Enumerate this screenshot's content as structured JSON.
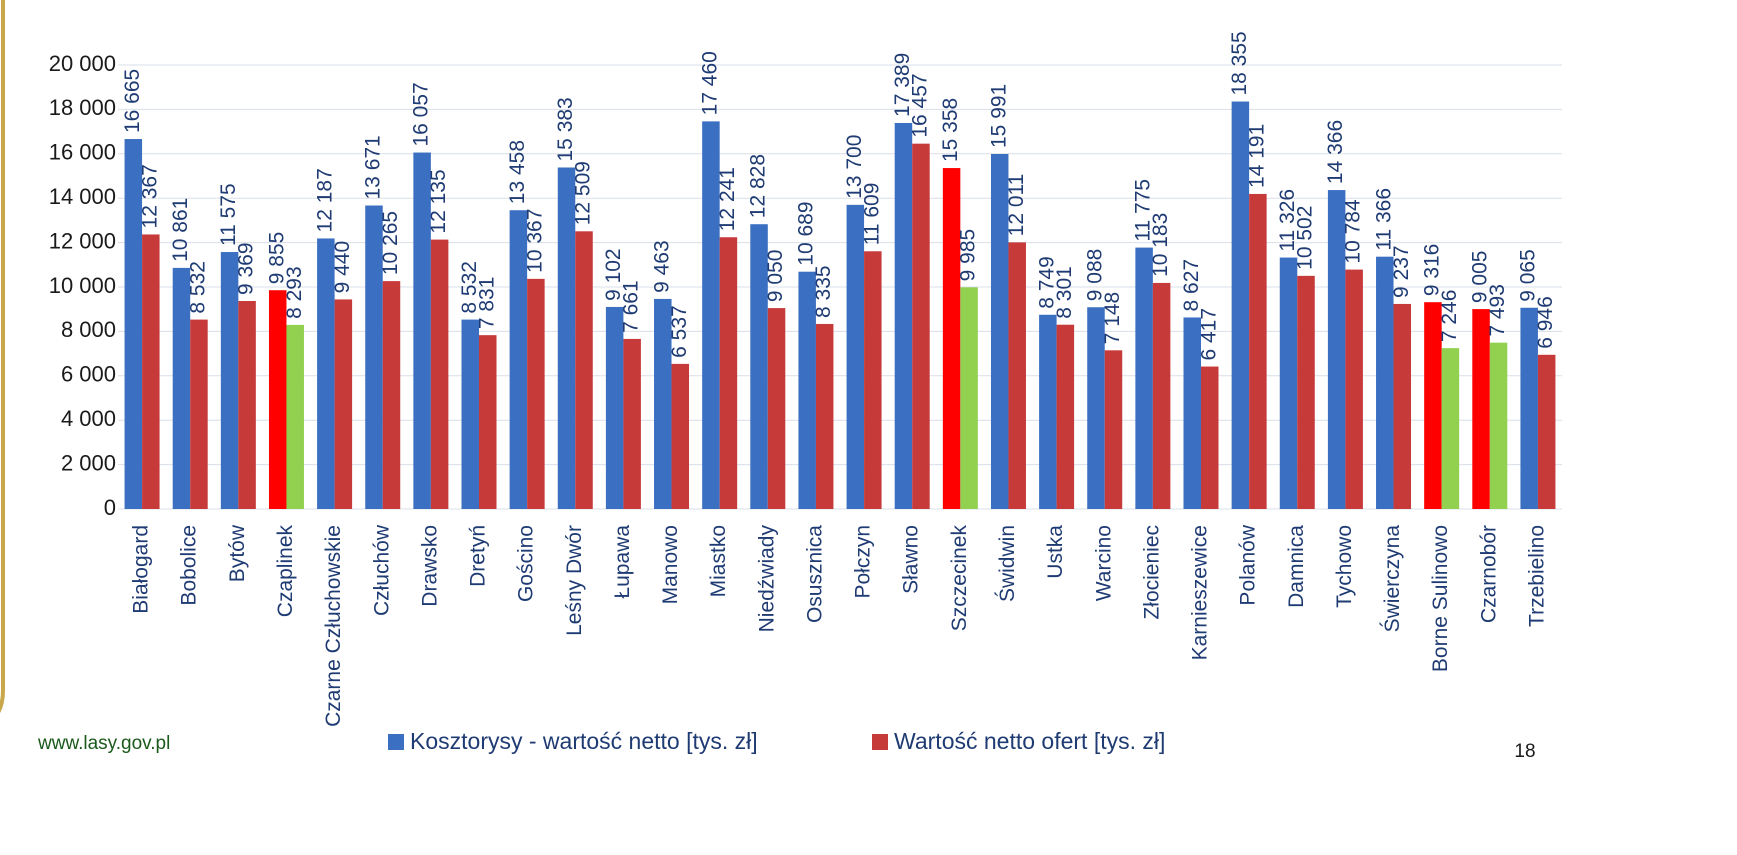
{
  "chart_data": {
    "type": "bar",
    "categories": [
      "Białogard",
      "Bobolice",
      "Bytów",
      "Czaplinek",
      "Czarne Człuchowskie",
      "Człuchów",
      "Drawsko",
      "Dretyń",
      "Gościno",
      "Leśny Dwór",
      "Łupawa",
      "Manowo",
      "Miastko",
      "Niedźwiady",
      "Osusznica",
      "Połczyn",
      "Sławno",
      "Szczecinek",
      "Świdwin",
      "Ustka",
      "Warcino",
      "Złocieniec",
      "Karnieszewice",
      "Polanów",
      "Damnica",
      "Tychowo",
      "Świerczyna",
      "Borne Sulinowo",
      "Czarnobór",
      "Trzebielino"
    ],
    "series": [
      {
        "name": "Kosztorysy - wartość netto [tys. zł]",
        "color": "#3b6fc2",
        "colors": [
          "#3b6fc2",
          "#3b6fc2",
          "#3b6fc2",
          "#ff0000",
          "#3b6fc2",
          "#3b6fc2",
          "#3b6fc2",
          "#3b6fc2",
          "#3b6fc2",
          "#3b6fc2",
          "#3b6fc2",
          "#3b6fc2",
          "#3b6fc2",
          "#3b6fc2",
          "#3b6fc2",
          "#3b6fc2",
          "#3b6fc2",
          "#ff0000",
          "#3b6fc2",
          "#3b6fc2",
          "#3b6fc2",
          "#3b6fc2",
          "#3b6fc2",
          "#3b6fc2",
          "#3b6fc2",
          "#3b6fc2",
          "#3b6fc2",
          "#ff0000",
          "#ff0000",
          "#3b6fc2"
        ],
        "values": [
          16665,
          10861,
          11575,
          9855,
          12187,
          13671,
          16057,
          8532,
          13458,
          15383,
          9102,
          9463,
          17460,
          12828,
          10689,
          13700,
          17389,
          15358,
          15991,
          8749,
          9088,
          11775,
          8627,
          18355,
          11326,
          14366,
          11366,
          9316,
          9005,
          9065
        ],
        "value_labels": [
          "16 665",
          "10 861",
          "11 575",
          "9 855",
          "12 187",
          "13 671",
          "16 057",
          "8 532",
          "13 458",
          "15 383",
          "9 102",
          "9 463",
          "17 460",
          "12 828",
          "10 689",
          "13 700",
          "17 389",
          "15 358",
          "15 991",
          "8 749",
          "9 088",
          "11 775",
          "8 627",
          "18 355",
          "11 326",
          "14 366",
          "11 366",
          "9 316",
          "9 005",
          "9 065"
        ]
      },
      {
        "name": "Wartość netto ofert [tys. zł]",
        "color": "#c73a3a",
        "colors": [
          "#c73a3a",
          "#c73a3a",
          "#c73a3a",
          "#92d050",
          "#c73a3a",
          "#c73a3a",
          "#c73a3a",
          "#c73a3a",
          "#c73a3a",
          "#c73a3a",
          "#c73a3a",
          "#c73a3a",
          "#c73a3a",
          "#c73a3a",
          "#c73a3a",
          "#c73a3a",
          "#c73a3a",
          "#92d050",
          "#c73a3a",
          "#c73a3a",
          "#c73a3a",
          "#c73a3a",
          "#c73a3a",
          "#c73a3a",
          "#c73a3a",
          "#c73a3a",
          "#c73a3a",
          "#92d050",
          "#92d050",
          "#c73a3a"
        ],
        "values": [
          12367,
          8532,
          9369,
          8293,
          9440,
          10265,
          12135,
          7831,
          10367,
          12509,
          7661,
          6537,
          12241,
          9050,
          8335,
          11609,
          16457,
          9985,
          12011,
          8301,
          7148,
          10183,
          6417,
          14191,
          10502,
          10784,
          9237,
          7246,
          7493,
          6946
        ],
        "value_labels": [
          "12 367",
          "8 532",
          "9 369",
          "8 293",
          "9 440",
          "10 265",
          "12 135",
          "7 831",
          "10 367",
          "12 509",
          "7 661",
          "6 537",
          "12 241",
          "9 050",
          "8 335",
          "11 609",
          "16 457",
          "9 985",
          "12 011",
          "8 301",
          "7 148",
          "10 183",
          "6 417",
          "14 191",
          "10 502",
          "10 784",
          "9 237",
          "7 246",
          "7 493",
          "6 946"
        ]
      }
    ],
    "ylim": [
      0,
      20000
    ],
    "yticks": [
      0,
      {
        "value": 2000,
        "label": "2 000"
      },
      {
        "value": 4000,
        "label": "4 000"
      },
      {
        "value": 6000,
        "label": "6 000"
      },
      {
        "value": 8000,
        "label": "8 000"
      },
      {
        "value": 10000,
        "label": "10 000"
      },
      {
        "value": 12000,
        "label": "12 000"
      },
      {
        "value": 14000,
        "label": "14 000"
      },
      {
        "value": 16000,
        "label": "16 000"
      },
      {
        "value": 18000,
        "label": "18 000"
      },
      {
        "value": 20000,
        "label": "20 000"
      }
    ],
    "grid": true,
    "legend": "bottom"
  },
  "footer": {
    "url": "www.lasy.gov.pl",
    "page": "18"
  }
}
